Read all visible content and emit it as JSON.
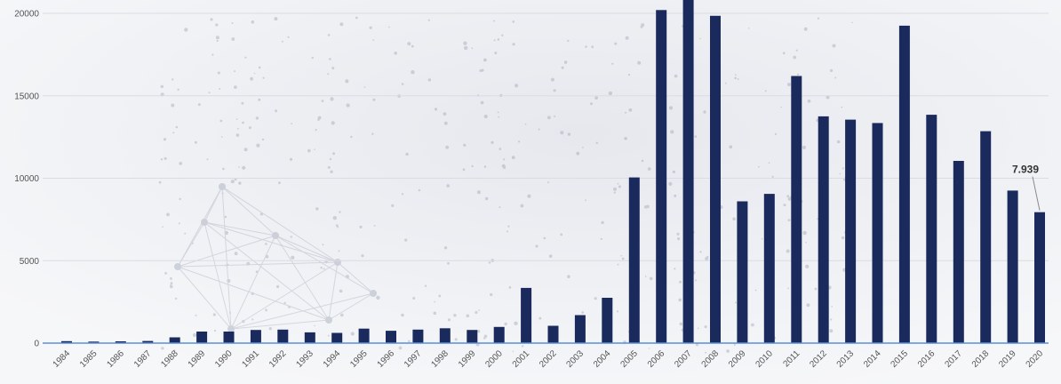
{
  "chart_data": {
    "type": "bar",
    "title": "",
    "xlabel": "",
    "ylabel": "",
    "ylim": [
      0,
      21000
    ],
    "y_ticks": [
      "0",
      "5000",
      "10000",
      "15000",
      "20000"
    ],
    "grid": true,
    "categories": [
      "1984",
      "1985",
      "1986",
      "1987",
      "1988",
      "1989",
      "1990",
      "1991",
      "1992",
      "1993",
      "1994",
      "1995",
      "1996",
      "1997",
      "1998",
      "1999",
      "2000",
      "2001",
      "2002",
      "2003",
      "2004",
      "2005",
      "2006",
      "2007",
      "2008",
      "2009",
      "2010",
      "2011",
      "2012",
      "2013",
      "2014",
      "2015",
      "2016",
      "2017",
      "2018",
      "2019",
      "2020"
    ],
    "values": [
      120,
      90,
      110,
      130,
      350,
      700,
      700,
      800,
      820,
      650,
      620,
      880,
      750,
      820,
      900,
      800,
      980,
      3350,
      1050,
      1700,
      2750,
      10050,
      20200,
      21000,
      19850,
      8600,
      9050,
      16200,
      13750,
      13550,
      13350,
      19250,
      13850,
      11050,
      12850,
      9250,
      7939
    ],
    "annotations": [
      {
        "category": "2020",
        "text": "7.939"
      }
    ],
    "colors": {
      "bar": "#1b2a5c",
      "axis": "#5b8fd9",
      "grid": "#d9dce3"
    }
  }
}
